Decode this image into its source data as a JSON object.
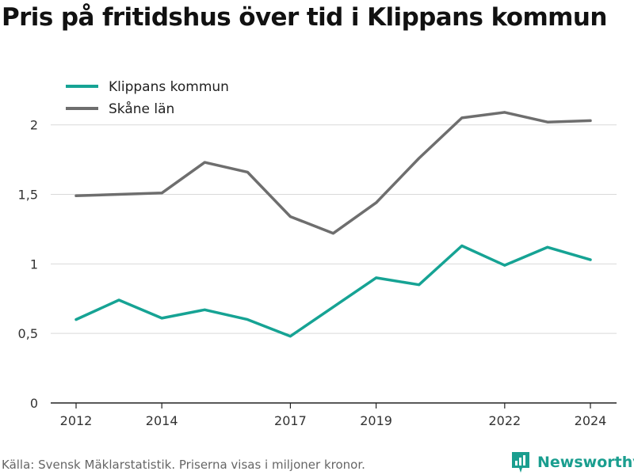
{
  "title": "Pris på fritidshus över tid i Klippans kommun",
  "source": "Källa: Svensk Mäklarstatistik. Priserna visas i miljoner kronor.",
  "brand": {
    "name": "Newsworthy",
    "icon": "newsworthy-logo-icon",
    "color": "#1a9e8f"
  },
  "chart_data": {
    "type": "line",
    "title": "Pris på fritidshus över tid i Klippans kommun",
    "x": [
      2012,
      2013,
      2014,
      2015,
      2016,
      2017,
      2018,
      2019,
      2020,
      2021,
      2022,
      2023,
      2024
    ],
    "x_tick_labels": [
      "2012",
      "2014",
      "2017",
      "2019",
      "2022",
      "2024"
    ],
    "y_tick_labels": [
      "0",
      "0,5",
      "1",
      "1,5",
      "2"
    ],
    "ylim": [
      0,
      2.3
    ],
    "grid": true,
    "legend_position": "top-left",
    "series": [
      {
        "name": "Klippans kommun",
        "color": "#16a394",
        "values": [
          0.6,
          0.74,
          0.61,
          0.67,
          0.6,
          0.48,
          0.69,
          0.9,
          0.85,
          1.13,
          0.99,
          1.12,
          1.03
        ]
      },
      {
        "name": "Skåne län",
        "color": "#6e6e6e",
        "values": [
          1.49,
          1.5,
          1.51,
          1.73,
          1.66,
          1.34,
          1.22,
          1.44,
          1.76,
          2.05,
          2.09,
          2.02,
          2.03
        ]
      }
    ]
  }
}
